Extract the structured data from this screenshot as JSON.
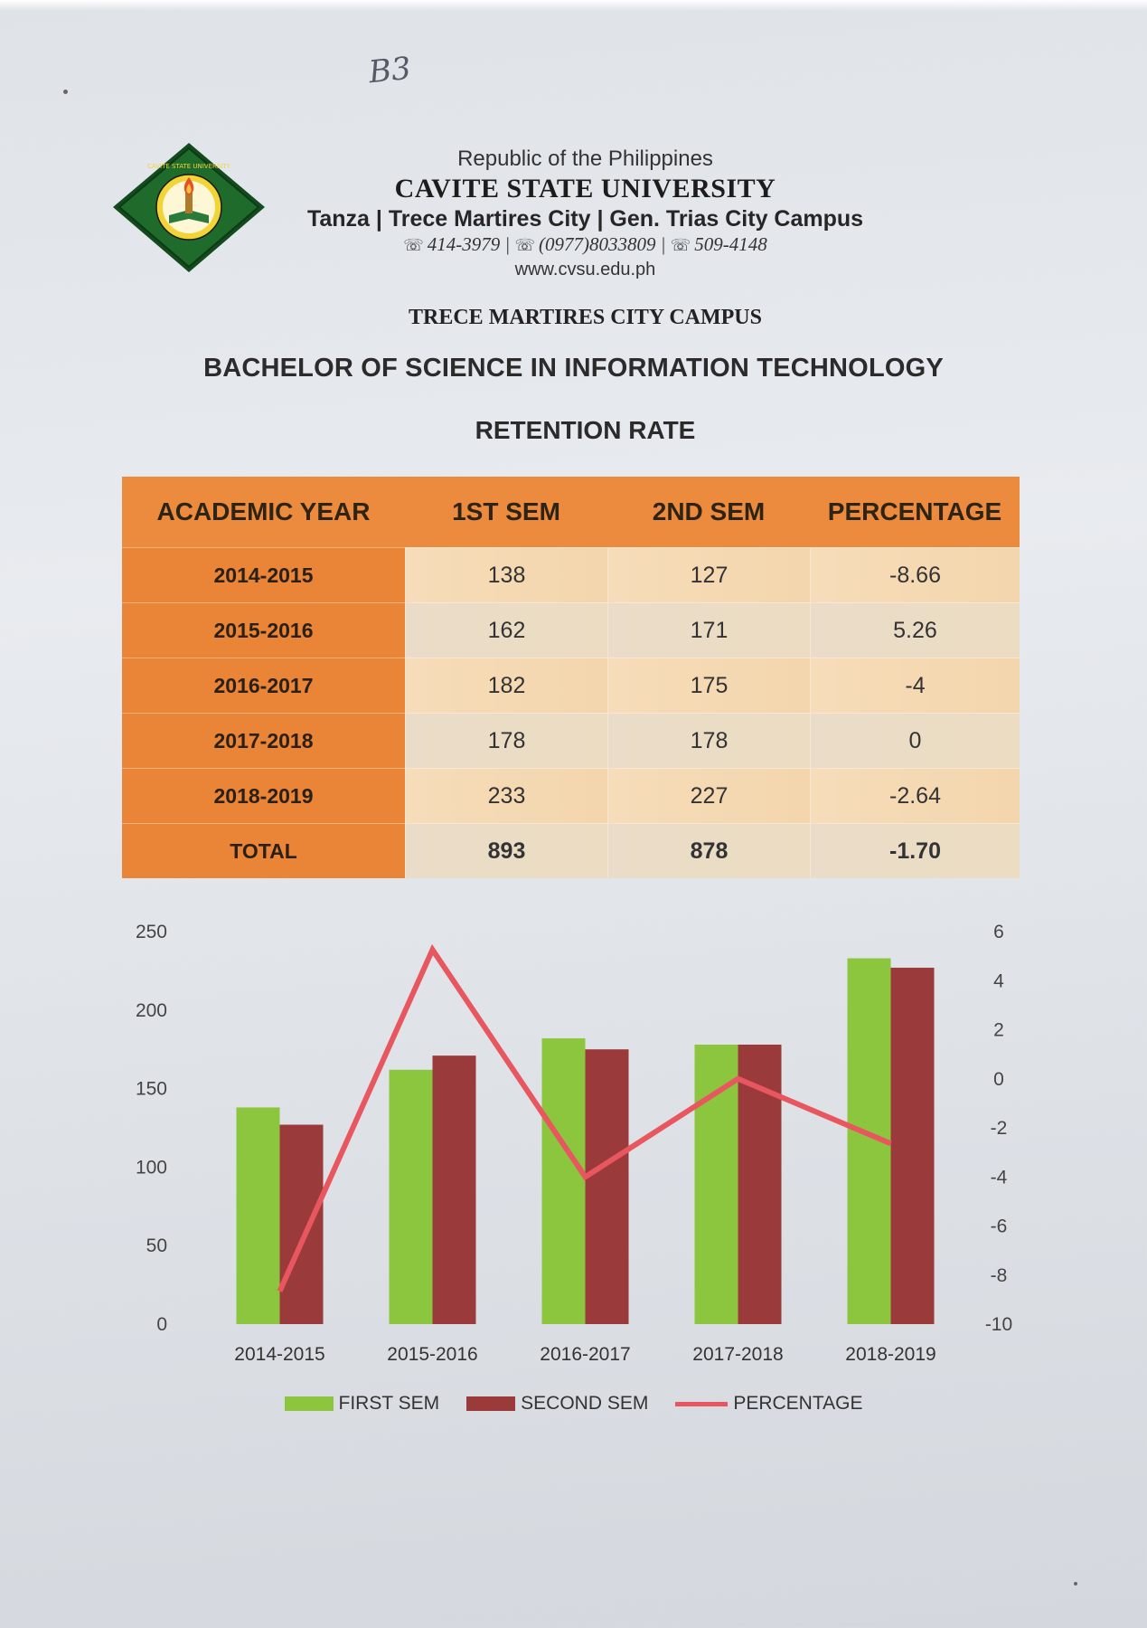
{
  "annotation": {
    "handwritten_mark": "B3"
  },
  "header": {
    "logo_text": "CAVITE STATE UNIVERSITY",
    "republic": "Republic of the Philippines",
    "university": "CAVITE STATE UNIVERSITY",
    "campuses": "Tanza | Trece Martires City | Gen. Trias City Campus",
    "phones": [
      "414-3979",
      "(0977)8033809",
      "509-4148"
    ],
    "website": "www.cvsu.edu.ph",
    "campus_name": "TRECE MARTIRES CITY CAMPUS",
    "program": "BACHELOR OF SCIENCE IN INFORMATION TECHNOLOGY",
    "title": "RETENTION RATE"
  },
  "table": {
    "headers": [
      "ACADEMIC YEAR",
      "1ST SEM",
      "2ND SEM",
      "PERCENTAGE"
    ],
    "rows": [
      [
        "2014-2015",
        "138",
        "127",
        "-8.66"
      ],
      [
        "2015-2016",
        "162",
        "171",
        "5.26"
      ],
      [
        "2016-2017",
        "182",
        "175",
        "-4"
      ],
      [
        "2017-2018",
        "178",
        "178",
        "0"
      ],
      [
        "2018-2019",
        "233",
        "227",
        "-2.64"
      ]
    ],
    "total": [
      "TOTAL",
      "893",
      "878",
      "-1.70"
    ]
  },
  "colors": {
    "first_sem": "#8cc63f",
    "second_sem": "#9b3a3a",
    "percentage": "#e85660",
    "table_header": "#ec8a3e"
  },
  "chart_data": {
    "type": "bar",
    "title": "",
    "categories": [
      "2014-2015",
      "2015-2016",
      "2016-2017",
      "2017-2018",
      "2018-2019"
    ],
    "series": [
      {
        "name": "FIRST SEM",
        "type": "bar",
        "axis": "left",
        "values": [
          138,
          162,
          182,
          178,
          233
        ]
      },
      {
        "name": "SECOND SEM",
        "type": "bar",
        "axis": "left",
        "values": [
          127,
          171,
          175,
          178,
          227
        ]
      },
      {
        "name": "PERCENTAGE",
        "type": "line",
        "axis": "right",
        "values": [
          -8.66,
          5.26,
          -4,
          0,
          -2.64
        ]
      }
    ],
    "ylim": [
      0,
      250
    ],
    "yticks": [
      "250",
      "200",
      "150",
      "100",
      "50",
      "0"
    ],
    "ylim_right": [
      -10,
      6
    ],
    "yticks_right": [
      "6",
      "4",
      "2",
      "0",
      "-2",
      "-4",
      "-6",
      "-8",
      "-10"
    ],
    "grid": false,
    "legend": "bottom"
  }
}
